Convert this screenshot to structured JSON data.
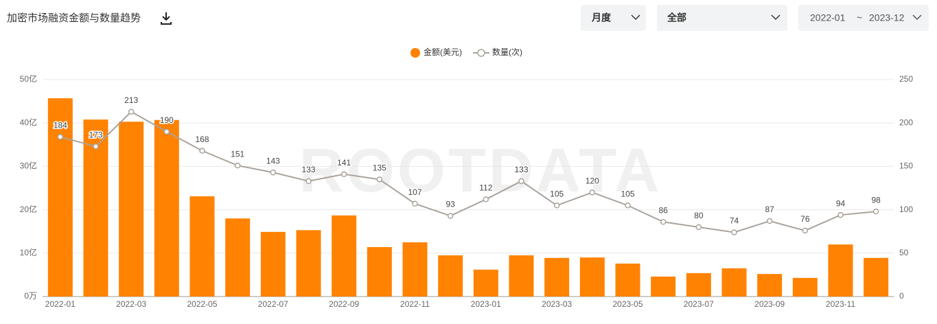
{
  "toolbar": {
    "period": "月度",
    "scope": "全部",
    "date_from": "2022-01",
    "date_sep": "~",
    "date_to": "2023-12"
  },
  "chart_data": {
    "type": "bar",
    "title": "加密市场融资金额与数量趋势",
    "watermark": "ROOTDATA",
    "categories": [
      "2022-01",
      null,
      "2022-03",
      null,
      "2022-05",
      null,
      "2022-07",
      null,
      "2022-09",
      null,
      "2022-11",
      null,
      "2023-01",
      null,
      "2023-03",
      null,
      "2023-05",
      null,
      "2023-07",
      null,
      "2023-09",
      null,
      "2023-11",
      null
    ],
    "series": [
      {
        "name": "金额(美元)",
        "type": "bar",
        "color": "#ff8200",
        "values": [
          45.7,
          40.8,
          40.3,
          40.7,
          23.1,
          18.0,
          14.9,
          15.3,
          18.7,
          11.4,
          12.5,
          9.5,
          6.2,
          9.5,
          8.9,
          9.0,
          7.6,
          4.6,
          5.4,
          6.5,
          5.2,
          4.3,
          12.0,
          8.9
        ]
      },
      {
        "name": "数量(次)",
        "type": "line",
        "axis": "y2",
        "color": "#aaa39c",
        "values": [
          184,
          173,
          213,
          190,
          168,
          151,
          143,
          133,
          141,
          135,
          107,
          93,
          112,
          133,
          105,
          120,
          105,
          86,
          80,
          74,
          87,
          76,
          94,
          98
        ]
      }
    ],
    "ylim": [
      0,
      50
    ],
    "yticks": [
      {
        "value": 0,
        "label": "0万"
      },
      {
        "value": 10,
        "label": "10亿"
      },
      {
        "value": 20,
        "label": "20亿"
      },
      {
        "value": 30,
        "label": "30亿"
      },
      {
        "value": 40,
        "label": "40亿"
      },
      {
        "value": 50,
        "label": "50亿"
      }
    ],
    "y2lim": [
      0,
      250
    ],
    "y2ticks": [
      0,
      50,
      100,
      150,
      200,
      250
    ],
    "grid": true,
    "legend": "top"
  }
}
